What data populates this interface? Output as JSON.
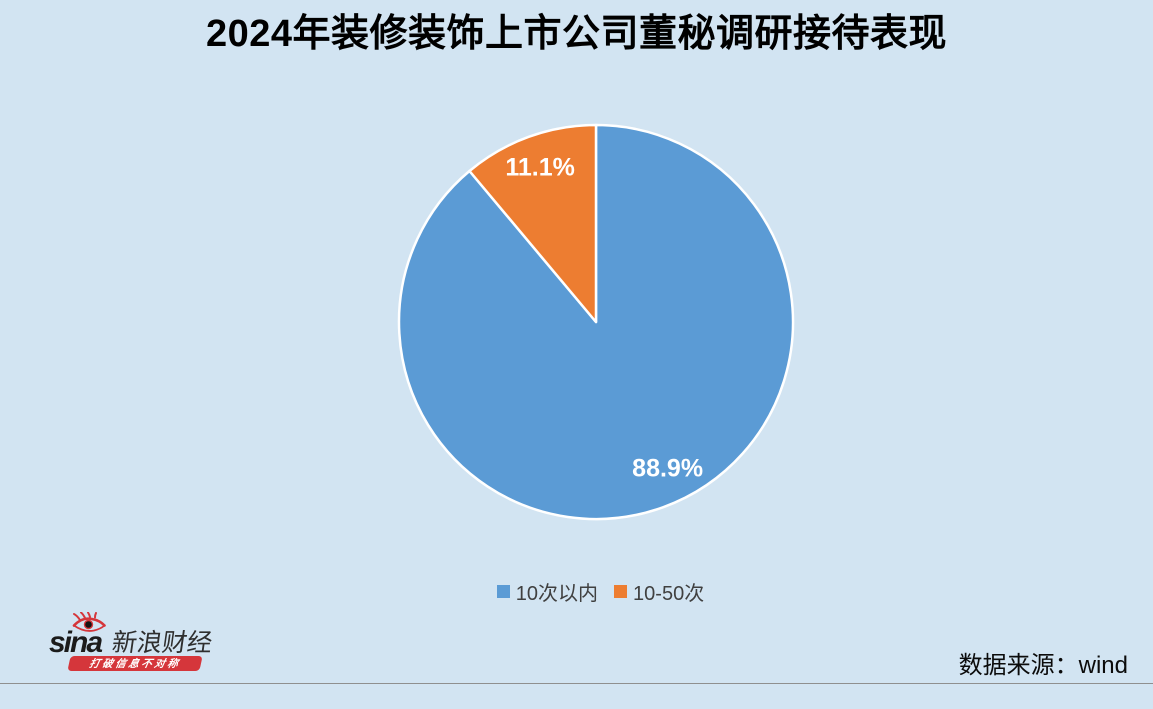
{
  "page": {
    "background_color": "#D2E4F2"
  },
  "chart_data": {
    "type": "pie",
    "title": "2024年装修装饰上市公司董秘调研接待表现",
    "labels": [
      "10次以内",
      "10-50次"
    ],
    "values": [
      88.9,
      11.1
    ],
    "data_labels": [
      "88.9%",
      "11.1%"
    ],
    "colors": [
      "#5B9BD5",
      "#ED7D31"
    ],
    "slice_border_color": "#FFFFFF",
    "data_label_color": "#FFFFFF",
    "start_angle": "top",
    "direction": "clockwise",
    "legend_position": "bottom"
  },
  "footer": {
    "source_text": "数据来源：wind",
    "divider_color": "#8F8F8F",
    "brand": {
      "wordmark": "sina",
      "name": "新浪财经",
      "slogan": "打破信息不对称",
      "red": "#D5363B"
    }
  }
}
